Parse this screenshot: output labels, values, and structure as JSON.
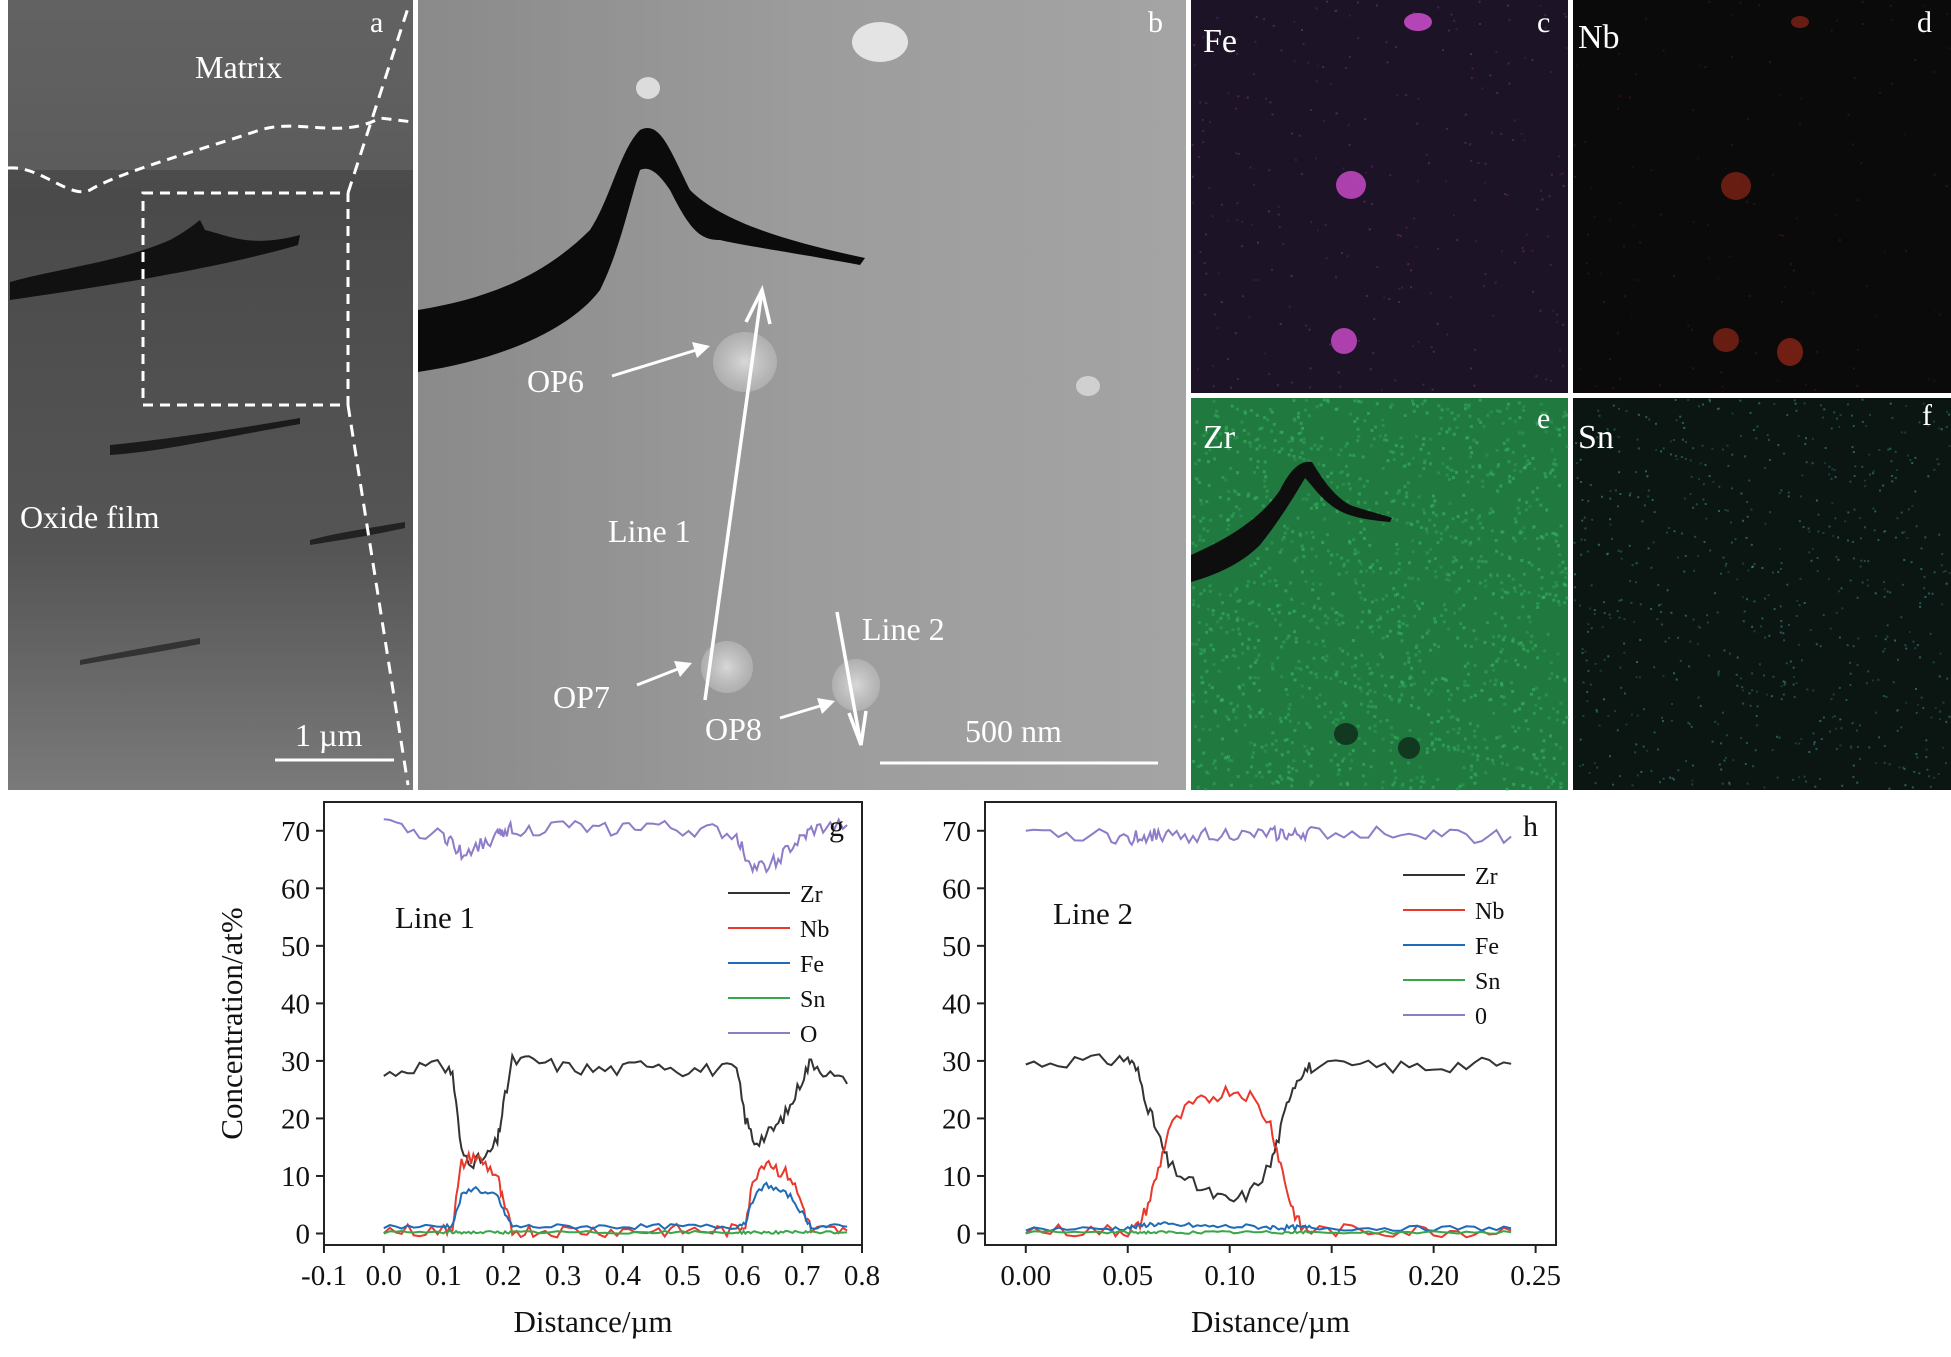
{
  "panels": {
    "a": {
      "letter": "a",
      "matrix_label": "Matrix",
      "oxide_label": "Oxide film",
      "scale_label": "1 µm"
    },
    "b": {
      "letter": "b",
      "labels": [
        "OP6",
        "OP7",
        "OP8",
        "Line 1",
        "Line 2"
      ],
      "scale_label": "500 nm"
    },
    "c": {
      "letter": "c",
      "element": "Fe",
      "color": "#c64ac6"
    },
    "d": {
      "letter": "d",
      "element": "Nb",
      "color": "#c6301c"
    },
    "e": {
      "letter": "e",
      "element": "Zr",
      "color": "#2fa05a"
    },
    "f": {
      "letter": "f",
      "element": "Sn",
      "color": "#52c8c8"
    }
  },
  "chart_data": [
    {
      "type": "line",
      "panel_letter": "g",
      "annotation": "Line 1",
      "xlabel": "Distance/µm",
      "ylabel": "Concentration/at%",
      "xlim": [
        -0.1,
        0.8
      ],
      "ylim": [
        -2,
        75
      ],
      "xticks": [
        "-0.1",
        "0.0",
        "0.1",
        "0.2",
        "0.3",
        "0.4",
        "0.5",
        "0.6",
        "0.7",
        "0.8"
      ],
      "yticks": [
        "0",
        "10",
        "20",
        "30",
        "40",
        "50",
        "60",
        "70"
      ],
      "legend": [
        "Zr",
        "Nb",
        "Fe",
        "Sn",
        "O"
      ],
      "x": [
        0.0,
        0.05,
        0.1,
        0.115,
        0.13,
        0.15,
        0.17,
        0.19,
        0.2,
        0.215,
        0.25,
        0.3,
        0.35,
        0.4,
        0.45,
        0.5,
        0.55,
        0.59,
        0.605,
        0.62,
        0.64,
        0.66,
        0.68,
        0.7,
        0.715,
        0.74,
        0.775
      ],
      "series": [
        {
          "name": "Zr",
          "color": "#333333",
          "values": [
            27.5,
            29,
            29,
            28,
            14,
            12.5,
            13,
            16,
            22,
            30,
            30,
            29,
            28.5,
            28.5,
            30,
            28.5,
            28.5,
            28.5,
            20,
            16,
            17,
            19,
            22,
            27,
            30,
            28,
            26
          ]
        },
        {
          "name": "Nb",
          "color": "#e8392c",
          "values": [
            0.5,
            0.5,
            0.5,
            1.5,
            12,
            13.5,
            12,
            10,
            5,
            0.5,
            0.5,
            0.5,
            0.5,
            0.5,
            0.5,
            0.5,
            0.5,
            0.5,
            2,
            10,
            13,
            11,
            10,
            5,
            0.5,
            0.5,
            0.5
          ]
        },
        {
          "name": "Fe",
          "color": "#1e6bb8",
          "values": [
            1.2,
            1.2,
            1.2,
            1.5,
            6.5,
            8,
            7,
            6.5,
            4,
            1.2,
            1.2,
            1.2,
            1.2,
            1.2,
            1.2,
            1.2,
            1.2,
            1.2,
            2,
            6.5,
            8.5,
            7.5,
            6.5,
            3.5,
            1.2,
            1.2,
            1.2
          ]
        },
        {
          "name": "Sn",
          "color": "#3aa64a",
          "values": [
            0.2,
            0.2,
            0.2,
            0.2,
            0.2,
            0.2,
            0.2,
            0.2,
            0.2,
            0.2,
            0.2,
            0.2,
            0.2,
            0.2,
            0.2,
            0.2,
            0.2,
            0.2,
            0.2,
            0.2,
            0.2,
            0.2,
            0.2,
            0.2,
            0.2,
            0.2,
            0.2
          ]
        },
        {
          "name": "O",
          "color": "#8e7cc8",
          "values": [
            71,
            70,
            69,
            68,
            66,
            67,
            68,
            69,
            70,
            70.5,
            70,
            71,
            70,
            70.5,
            71,
            70,
            70,
            69,
            66,
            63.5,
            64,
            65,
            67,
            68.5,
            70,
            70.5,
            71
          ]
        }
      ]
    },
    {
      "type": "line",
      "panel_letter": "h",
      "annotation": "Line 2",
      "xlabel": "Distance/µm",
      "ylabel": "",
      "xlim": [
        -0.02,
        0.26
      ],
      "ylim": [
        -2,
        75
      ],
      "xticks": [
        "0.00",
        "0.05",
        "0.10",
        "0.15",
        "0.20",
        "0.25"
      ],
      "yticks": [
        "0",
        "10",
        "20",
        "30",
        "40",
        "50",
        "60",
        "70"
      ],
      "legend": [
        "Zr",
        "Nb",
        "Fe",
        "Sn",
        "0"
      ],
      "x": [
        0.0,
        0.02,
        0.04,
        0.05,
        0.055,
        0.06,
        0.065,
        0.07,
        0.08,
        0.09,
        0.1,
        0.11,
        0.12,
        0.125,
        0.13,
        0.135,
        0.14,
        0.16,
        0.18,
        0.2,
        0.22,
        0.238
      ],
      "series": [
        {
          "name": "Zr",
          "color": "#333333",
          "values": [
            29.5,
            30,
            30,
            30.5,
            28,
            22,
            17,
            12,
            9,
            7,
            5.5,
            7,
            12,
            18,
            25,
            28,
            29,
            29,
            29,
            29,
            29.5,
            29.5
          ]
        },
        {
          "name": "Nb",
          "color": "#e8392c",
          "values": [
            0.5,
            0.5,
            0.5,
            0.5,
            1,
            5,
            11,
            18,
            22,
            23.5,
            25,
            24,
            19,
            12,
            5,
            1,
            0.5,
            0.5,
            0.5,
            0.5,
            0.5,
            0.5
          ]
        },
        {
          "name": "Fe",
          "color": "#1e6bb8",
          "values": [
            0.8,
            0.8,
            0.8,
            1,
            1.2,
            1.6,
            1.6,
            1.5,
            1.4,
            1.2,
            1.2,
            1.2,
            1.1,
            1,
            1,
            1,
            1,
            0.9,
            0.9,
            0.9,
            0.9,
            0.9
          ]
        },
        {
          "name": "Sn",
          "color": "#3aa64a",
          "values": [
            0.2,
            0.2,
            0.2,
            0.2,
            0.2,
            0.2,
            0.2,
            0.2,
            0.2,
            0.2,
            0.2,
            0.2,
            0.2,
            0.2,
            0.2,
            0.2,
            0.2,
            0.2,
            0.2,
            0.2,
            0.2,
            0.2
          ]
        },
        {
          "name": "0",
          "color": "#8e7cc8",
          "values": [
            69,
            69.5,
            69,
            68.5,
            69,
            69,
            69.5,
            69,
            69,
            69.5,
            69.5,
            69,
            69.5,
            69.5,
            69,
            69.5,
            69.5,
            69.5,
            70,
            69.5,
            69,
            69
          ]
        }
      ]
    }
  ]
}
